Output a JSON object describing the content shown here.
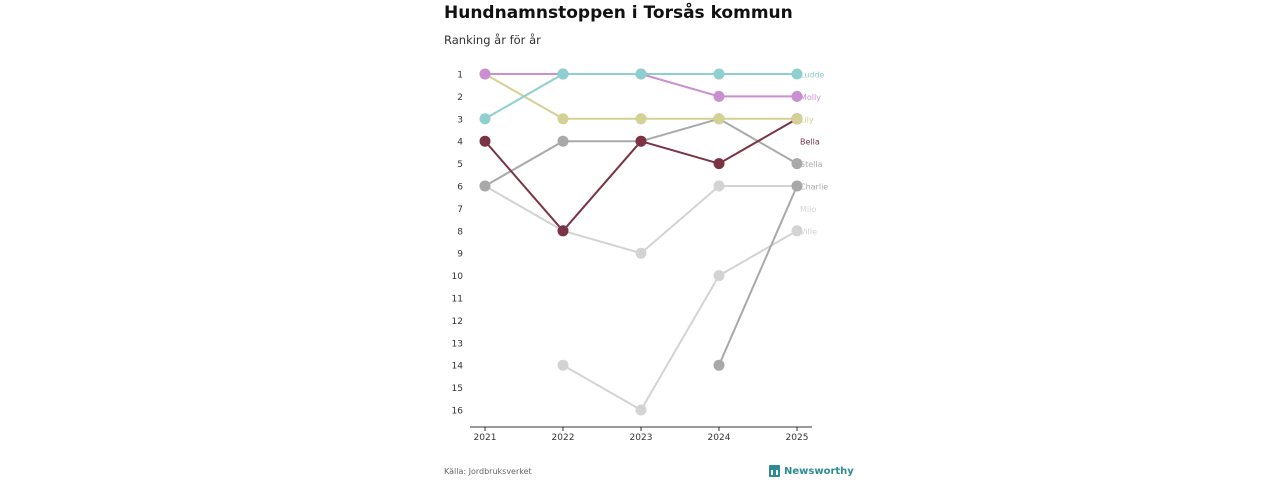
{
  "header": {
    "title": "Hundnamnstoppen i Torsås kommun",
    "subtitle": "Ranking år för år"
  },
  "footer": {
    "source": "Källa: Jordbruksverket",
    "brand": "Newsworthy",
    "brand_icon": "newsworthy-logo-icon"
  },
  "chart_data": {
    "type": "line",
    "title": "Hundnamnstoppen i Torsås kommun",
    "subtitle": "Ranking år för år",
    "xlabel": "",
    "ylabel": "",
    "x": [
      "2021",
      "2022",
      "2023",
      "2024",
      "2025"
    ],
    "y_ticks": [
      "1",
      "2",
      "3",
      "4",
      "5",
      "6",
      "7",
      "8",
      "9",
      "10",
      "11",
      "12",
      "13",
      "14",
      "15",
      "16"
    ],
    "ylim": [
      1,
      16
    ],
    "y_inverted": true,
    "grid": false,
    "series": [
      {
        "name": "Ville",
        "color": "#d3d3d3",
        "values": [
          null,
          14,
          16,
          10,
          8
        ]
      },
      {
        "name": "Milo",
        "color": "#d3d3d3",
        "values": [
          6,
          8,
          9,
          6,
          6
        ]
      },
      {
        "name": "Charlie",
        "color": "#a9a9a9",
        "values": [
          null,
          null,
          null,
          14,
          6
        ]
      },
      {
        "name": "Stella",
        "color": "#a9a9a9",
        "values": [
          6,
          4,
          4,
          3,
          5
        ]
      },
      {
        "name": "Bella",
        "color": "#7b3346",
        "values": [
          4,
          8,
          4,
          5,
          3
        ]
      },
      {
        "name": "Lily",
        "color": "#d4d196",
        "values": [
          1,
          3,
          3,
          3,
          3
        ]
      },
      {
        "name": "Molly",
        "color": "#c98fd0",
        "values": [
          1,
          1,
          1,
          2,
          2
        ]
      },
      {
        "name": "Ludde",
        "color": "#8fcfcf",
        "values": [
          3,
          1,
          1,
          1,
          1
        ]
      }
    ]
  }
}
